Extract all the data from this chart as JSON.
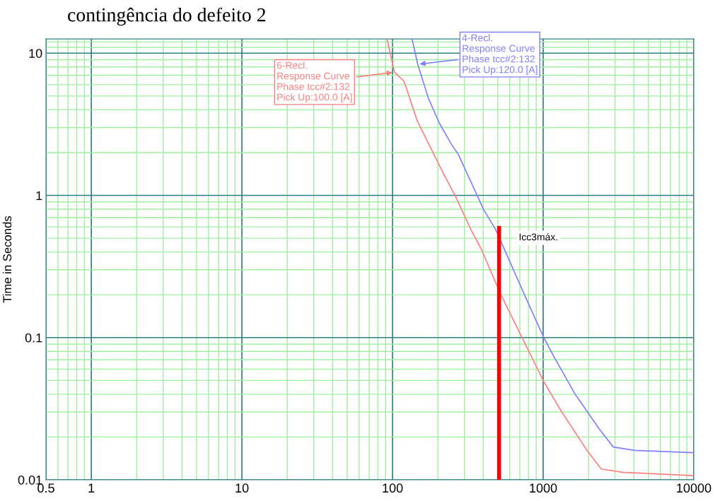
{
  "chart_data": {
    "type": "line",
    "title": "contingência do defeito 2",
    "ylabel": "Time in Seconds",
    "log": "xy",
    "grid": true,
    "xlim": [
      0.5,
      10000
    ],
    "xticks": [
      0.5,
      {
        "value": 0.6,
        "label": null
      },
      {
        "value": 0.7,
        "label": null
      },
      {
        "value": 0.8,
        "label": null
      },
      {
        "value": 0.9,
        "label": null
      },
      1,
      {
        "value": 2,
        "label": null
      },
      {
        "value": 3,
        "label": null
      },
      {
        "value": 4,
        "label": null
      },
      {
        "value": 5,
        "label": null
      },
      {
        "value": 6,
        "label": null
      },
      {
        "value": 7,
        "label": null
      },
      {
        "value": 8,
        "label": null
      },
      {
        "value": 9,
        "label": null
      },
      10,
      {
        "value": 20,
        "label": null
      },
      {
        "value": 30,
        "label": null
      },
      {
        "value": 40,
        "label": null
      },
      {
        "value": 50,
        "label": null
      },
      {
        "value": 60,
        "label": null
      },
      {
        "value": 70,
        "label": null
      },
      {
        "value": 80,
        "label": null
      },
      {
        "value": 90,
        "label": null
      },
      100,
      {
        "value": 200,
        "label": null
      },
      {
        "value": 300,
        "label": null
      },
      {
        "value": 400,
        "label": null
      },
      {
        "value": 500,
        "label": null
      },
      {
        "value": 600,
        "label": null
      },
      {
        "value": 700,
        "label": null
      },
      {
        "value": 800,
        "label": null
      },
      {
        "value": 900,
        "label": null
      },
      1000,
      {
        "value": 2000,
        "label": null
      },
      {
        "value": 3000,
        "label": null
      },
      {
        "value": 4000,
        "label": null
      },
      {
        "value": 5000,
        "label": null
      },
      {
        "value": 6000,
        "label": null
      },
      {
        "value": 7000,
        "label": null
      },
      {
        "value": 8000,
        "label": null
      },
      {
        "value": 9000,
        "label": null
      },
      10000
    ],
    "ylim": [
      0.01,
      12.6
    ],
    "yticks": [
      0.01,
      {
        "value": 0.02,
        "label": null
      },
      {
        "value": 0.03,
        "label": null
      },
      {
        "value": 0.04,
        "label": null
      },
      {
        "value": 0.05,
        "label": null
      },
      {
        "value": 0.06,
        "label": null
      },
      {
        "value": 0.07,
        "label": null
      },
      {
        "value": 0.08,
        "label": null
      },
      {
        "value": 0.09,
        "label": null
      },
      0.1,
      {
        "value": 0.2,
        "label": null
      },
      {
        "value": 0.3,
        "label": null
      },
      {
        "value": 0.4,
        "label": null
      },
      {
        "value": 0.5,
        "label": null
      },
      {
        "value": 0.6,
        "label": null
      },
      {
        "value": 0.7,
        "label": null
      },
      {
        "value": 0.8,
        "label": null
      },
      {
        "value": 0.9,
        "label": null
      },
      1,
      {
        "value": 2,
        "label": null
      },
      {
        "value": 3,
        "label": null
      },
      {
        "value": 4,
        "label": null
      },
      {
        "value": 5,
        "label": null
      },
      {
        "value": 6,
        "label": null
      },
      {
        "value": 7,
        "label": null
      },
      {
        "value": 8,
        "label": null
      },
      {
        "value": 9,
        "label": null
      },
      10,
      {
        "value": 11,
        "label": null
      },
      {
        "value": 12,
        "label": null
      }
    ],
    "series": [
      {
        "color": "#ff8080",
        "x": [
          92,
          103,
          119,
          146,
          204,
          222,
          261,
          331,
          389,
          521,
          1005,
          1316,
          1963,
          2434,
          3365,
          10000
        ],
        "values": [
          12.5,
          7.34,
          6.38,
          3.34,
          1.64,
          1.37,
          0.99,
          0.577,
          0.418,
          0.203,
          0.0495,
          0.0305,
          0.016,
          0.0119,
          0.0113,
          0.0107
        ]
      },
      {
        "color": "#8080ff",
        "x": [
          135,
          147,
          173,
          204,
          247,
          273,
          402,
          483,
          768,
          1005,
          1170,
          1633,
          2356,
          2924,
          4043,
          10000
        ],
        "values": [
          12.5,
          8.35,
          4.82,
          3.24,
          2.27,
          1.95,
          0.797,
          0.577,
          0.19,
          0.101,
          0.0745,
          0.0399,
          0.0228,
          0.017,
          0.0161,
          0.0155
        ]
      },
      {
        "color": "#ff0000",
        "x": [
          510,
          510
        ],
        "values": [
          0.01,
          0.59
        ]
      }
    ],
    "annotations": [
      {
        "text": "6-Recl.\nResponse Curve\nPhase tcc#2:132\nPick Up:100.0 [A]",
        "x": 103,
        "y": 7.34
      },
      {
        "text": "4-Recl.\nResponse Curve\nPhase tcc#2:132\nPick Up:120.0 [A]",
        "x": 147,
        "y": 8.35
      },
      {
        "text": "Icc3máx.",
        "x": 510,
        "y": 0.59
      }
    ]
  }
}
